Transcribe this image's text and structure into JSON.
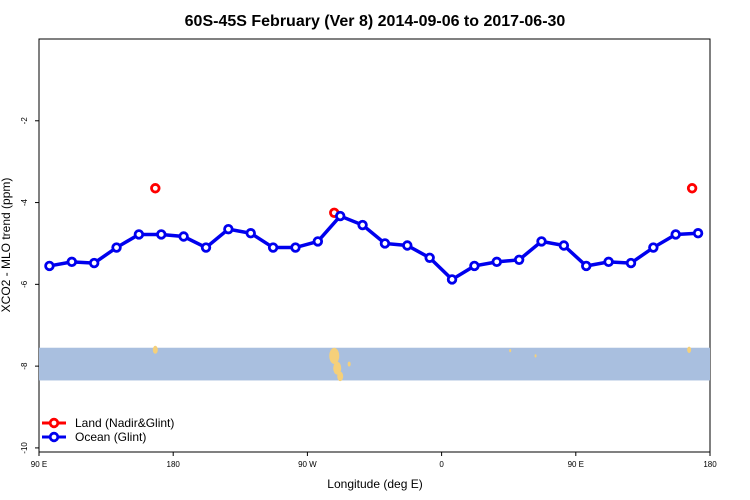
{
  "chart_data": {
    "type": "line",
    "title": "60S-45S February (Ver 8)   2014-09-06 to 2017-06-30",
    "xlabel": "Longitude (deg E)",
    "ylabel": "XCO2 - MLO trend (ppm)",
    "x_ticks": [
      {
        "value": 90,
        "label": "90 E"
      },
      {
        "value": 180,
        "label": "180"
      },
      {
        "value": 270,
        "label": "90 W"
      },
      {
        "value": 360,
        "label": "0"
      },
      {
        "value": 450,
        "label": "90 E"
      },
      {
        "value": 540,
        "label": "180"
      }
    ],
    "y_ticks": [
      {
        "value": -10,
        "label": "-10"
      },
      {
        "value": -8,
        "label": "-8"
      },
      {
        "value": -6,
        "label": "-6"
      },
      {
        "value": -4,
        "label": "-4"
      },
      {
        "value": -2,
        "label": "-2"
      }
    ],
    "xlim": [
      90,
      540
    ],
    "ylim": [
      -10.1,
      0
    ],
    "grid": false,
    "legend_position": "bottom-left",
    "map_band": {
      "y_top": -7.55,
      "y_bottom": -8.35,
      "color": "#a9bfdf",
      "land_color": "#f5d07a"
    },
    "series": [
      {
        "name": "Land (Nadir&Glint)",
        "color": "#ff0000",
        "points": [
          {
            "x": 168,
            "y": -3.65
          },
          {
            "x": 288,
            "y": -4.25
          },
          {
            "x": 528,
            "y": -3.65
          }
        ]
      },
      {
        "name": "Ocean (Glint)",
        "color": "#0000ee",
        "points": [
          {
            "x": 97,
            "y": -5.55
          },
          {
            "x": 112,
            "y": -5.45
          },
          {
            "x": 127,
            "y": -5.48
          },
          {
            "x": 142,
            "y": -5.1
          },
          {
            "x": 157,
            "y": -4.78
          },
          {
            "x": 172,
            "y": -4.78
          },
          {
            "x": 187,
            "y": -4.83
          },
          {
            "x": 202,
            "y": -5.1
          },
          {
            "x": 217,
            "y": -4.65
          },
          {
            "x": 232,
            "y": -4.75
          },
          {
            "x": 247,
            "y": -5.1
          },
          {
            "x": 262,
            "y": -5.1
          },
          {
            "x": 277,
            "y": -4.95
          },
          {
            "x": 292,
            "y": -4.33
          },
          {
            "x": 307,
            "y": -4.55
          },
          {
            "x": 322,
            "y": -5.0
          },
          {
            "x": 337,
            "y": -5.05
          },
          {
            "x": 352,
            "y": -5.35
          },
          {
            "x": 367,
            "y": -5.88
          },
          {
            "x": 382,
            "y": -5.55
          },
          {
            "x": 397,
            "y": -5.45
          },
          {
            "x": 412,
            "y": -5.4
          },
          {
            "x": 427,
            "y": -4.95
          },
          {
            "x": 442,
            "y": -5.05
          },
          {
            "x": 457,
            "y": -5.55
          },
          {
            "x": 472,
            "y": -5.45
          },
          {
            "x": 487,
            "y": -5.48
          },
          {
            "x": 502,
            "y": -5.1
          },
          {
            "x": 517,
            "y": -4.78
          },
          {
            "x": 532,
            "y": -4.75
          }
        ]
      }
    ]
  }
}
